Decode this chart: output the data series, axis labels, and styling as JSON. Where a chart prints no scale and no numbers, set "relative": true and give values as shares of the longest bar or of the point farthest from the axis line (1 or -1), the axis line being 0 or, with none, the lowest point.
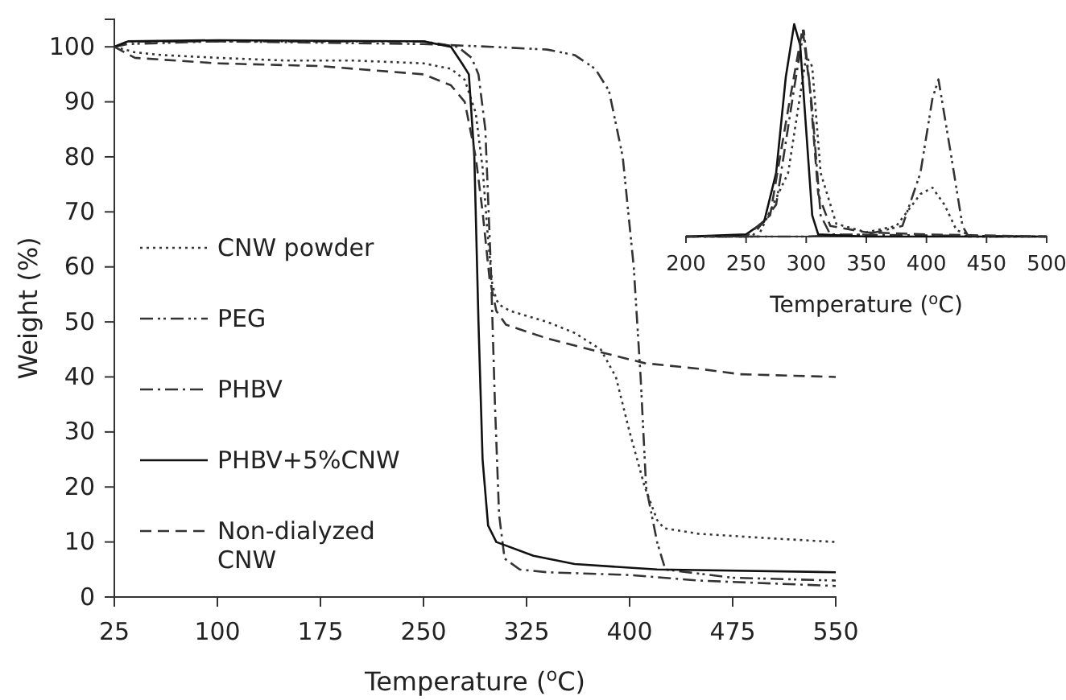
{
  "chart_data": [
    {
      "type": "line",
      "xlabel": "Temperature ($^{o}$C)",
      "ylabel": "Weight (%)",
      "xlim": [
        25,
        550
      ],
      "ylim": [
        0,
        105
      ],
      "xticks": [
        25,
        100,
        175,
        250,
        325,
        400,
        475,
        550
      ],
      "yticks": [
        0,
        10,
        20,
        30,
        40,
        50,
        60,
        70,
        80,
        90,
        100
      ],
      "grid": false,
      "legend": "left",
      "marker": "none",
      "series": [
        {
          "name": "CNW powder",
          "color": "#333333",
          "line_style": "dotted",
          "x": [
            25,
            40,
            60,
            100,
            150,
            200,
            250,
            270,
            280,
            288,
            293,
            297,
            300,
            303,
            306,
            313,
            340,
            360,
            379,
            390,
            400,
            411,
            420,
            425,
            450,
            500,
            550
          ],
          "values": [
            100,
            99,
            98.5,
            98,
            97.5,
            97.5,
            97,
            96,
            94,
            88,
            78,
            65,
            57,
            54,
            53,
            52,
            50,
            48,
            45,
            40,
            30,
            20,
            14,
            12.5,
            11.5,
            10.7,
            10
          ]
        },
        {
          "name": "PEG",
          "color": "#333333",
          "line_style": "dashdotdot",
          "x": [
            25,
            35,
            100,
            250,
            300,
            340,
            360,
            375,
            385,
            395,
            403,
            408,
            412,
            420,
            426,
            475,
            550
          ],
          "values": [
            100,
            100.5,
            101,
            100.5,
            100,
            99.5,
            98.5,
            96,
            92,
            80,
            60,
            40,
            20,
            10,
            5,
            3.5,
            3
          ]
        },
        {
          "name": "PHBV",
          "color": "#333333",
          "line_style": "dashdot",
          "x": [
            25,
            35,
            100,
            250,
            275,
            285,
            290,
            295,
            299,
            302,
            305,
            309,
            320,
            340,
            400,
            450,
            550
          ],
          "values": [
            100,
            101,
            101,
            101,
            100,
            98,
            95,
            85,
            60,
            35,
            15,
            7,
            5,
            4.5,
            4,
            3,
            2
          ]
        },
        {
          "name": "PHBV+5%CNW",
          "color": "#111111",
          "line_style": "solid",
          "x": [
            25,
            35,
            100,
            250,
            270,
            278,
            283,
            287,
            290,
            293,
            297,
            303,
            330,
            360,
            420,
            550
          ],
          "values": [
            100,
            101,
            101.2,
            101,
            100,
            97,
            95,
            80,
            50,
            25,
            13,
            10,
            7.5,
            6,
            5,
            4.5
          ]
        },
        {
          "name": "Non-dialyzed CNW",
          "color": "#333333",
          "line_style": "dashed",
          "x": [
            25,
            40,
            100,
            175,
            250,
            270,
            280,
            288,
            293,
            298,
            303,
            310,
            340,
            379,
            411,
            450,
            480,
            550
          ],
          "values": [
            100,
            98,
            97,
            96.5,
            95,
            93,
            90,
            80,
            70,
            58,
            52,
            49.5,
            47,
            44.5,
            42.5,
            41.5,
            40.5,
            40
          ]
        }
      ]
    },
    {
      "type": "line",
      "relative": true,
      "xlabel": "Temperature ($^{o}$C)",
      "xlim": [
        200,
        500
      ],
      "xticks": [
        200,
        250,
        300,
        350,
        400,
        450,
        500
      ],
      "tick_labels": "x",
      "grid": false,
      "legend": false,
      "marker": "none",
      "series": [
        {
          "color": "#333333",
          "line_style": "dotted",
          "x": [
            200,
            260,
            285,
            300,
            305,
            312,
            325,
            350,
            375,
            395,
            405,
            415,
            425,
            440,
            500
          ],
          "values": [
            0,
            0,
            0.3,
            0.85,
            0.8,
            0.3,
            0.06,
            0.02,
            0.05,
            0.2,
            0.23,
            0.15,
            0.03,
            0,
            0
          ]
        },
        {
          "color": "#333333",
          "line_style": "dashdotdot",
          "x": [
            200,
            300,
            350,
            380,
            395,
            405,
            410,
            420,
            430,
            435,
            500
          ],
          "values": [
            0,
            0,
            0.01,
            0.05,
            0.3,
            0.65,
            0.74,
            0.4,
            0.05,
            0,
            0
          ]
        },
        {
          "color": "#333333",
          "line_style": "dashdot",
          "x": [
            200,
            255,
            275,
            290,
            298,
            305,
            312,
            320,
            500
          ],
          "values": [
            0,
            0,
            0.15,
            0.7,
            0.97,
            0.6,
            0.1,
            0.01,
            0
          ]
        },
        {
          "color": "#111111",
          "line_style": "solid",
          "x": [
            200,
            250,
            265,
            275,
            283,
            290,
            295,
            300,
            305,
            310,
            350,
            500
          ],
          "values": [
            0,
            0.01,
            0.07,
            0.3,
            0.75,
            1,
            0.9,
            0.5,
            0.1,
            0.01,
            0,
            0
          ]
        },
        {
          "color": "#333333",
          "line_style": "dashed",
          "x": [
            200,
            250,
            270,
            285,
            297,
            303,
            310,
            320,
            350,
            400,
            500
          ],
          "values": [
            0,
            0,
            0.1,
            0.6,
            0.98,
            0.7,
            0.2,
            0.05,
            0.02,
            0.01,
            0
          ]
        }
      ]
    }
  ]
}
